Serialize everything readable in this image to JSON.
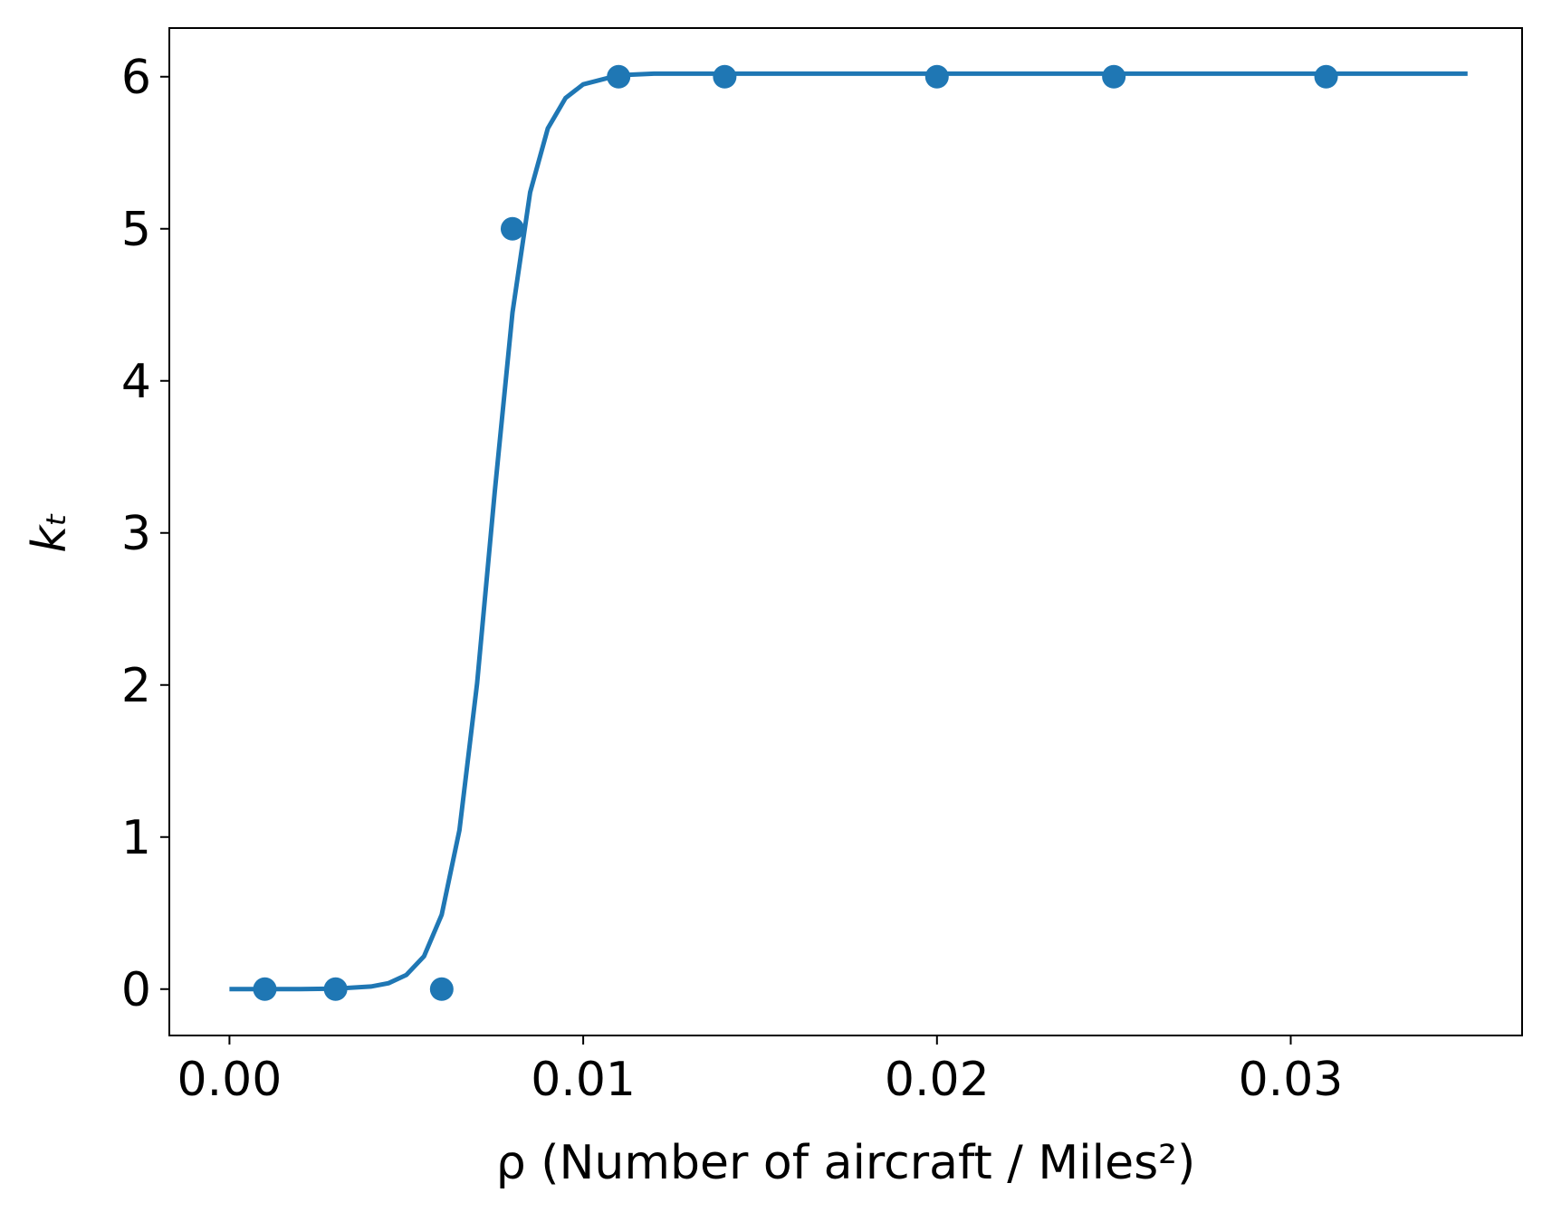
{
  "chart_data": {
    "type": "scatter",
    "xlabel": "ρ (Number of aircraft / Miles²)",
    "ylabel": "kₜ",
    "xlim": [
      -0.0017,
      0.03654
    ],
    "ylim": [
      -0.305,
      6.32
    ],
    "xticks": [
      {
        "value": 0,
        "label": "0.00"
      },
      {
        "value": 0.01,
        "label": "0.01"
      },
      {
        "value": 0.02,
        "label": "0.02"
      },
      {
        "value": 0.03,
        "label": "0.03"
      }
    ],
    "yticks": [
      0,
      1,
      2,
      3,
      4,
      5,
      6
    ],
    "grid": false,
    "series": [
      {
        "type": "line",
        "color": "#1f77b4",
        "x": [
          0,
          0.001,
          0.002,
          0.003,
          0.004,
          0.0045,
          0.005,
          0.0055,
          0.006,
          0.0065,
          0.007,
          0.0075,
          0.008,
          0.0085,
          0.009,
          0.0095,
          0.01,
          0.011,
          0.012,
          0.015,
          0.02,
          0.025,
          0.03,
          0.035
        ],
        "values": [
          0,
          0,
          0,
          0.003,
          0.017,
          0.039,
          0.093,
          0.216,
          0.489,
          1.045,
          2.01,
          3.27,
          4.45,
          5.24,
          5.66,
          5.86,
          5.95,
          6.01,
          6.02,
          6.02,
          6.02,
          6.02,
          6.02,
          6.02
        ]
      },
      {
        "type": "scatter",
        "color": "#1f77b4",
        "x": [
          0.001,
          0.003,
          0.006,
          0.008,
          0.011,
          0.014,
          0.02,
          0.025,
          0.031
        ],
        "values": [
          0,
          0,
          0,
          5,
          6,
          6,
          6,
          6,
          6
        ]
      }
    ]
  }
}
